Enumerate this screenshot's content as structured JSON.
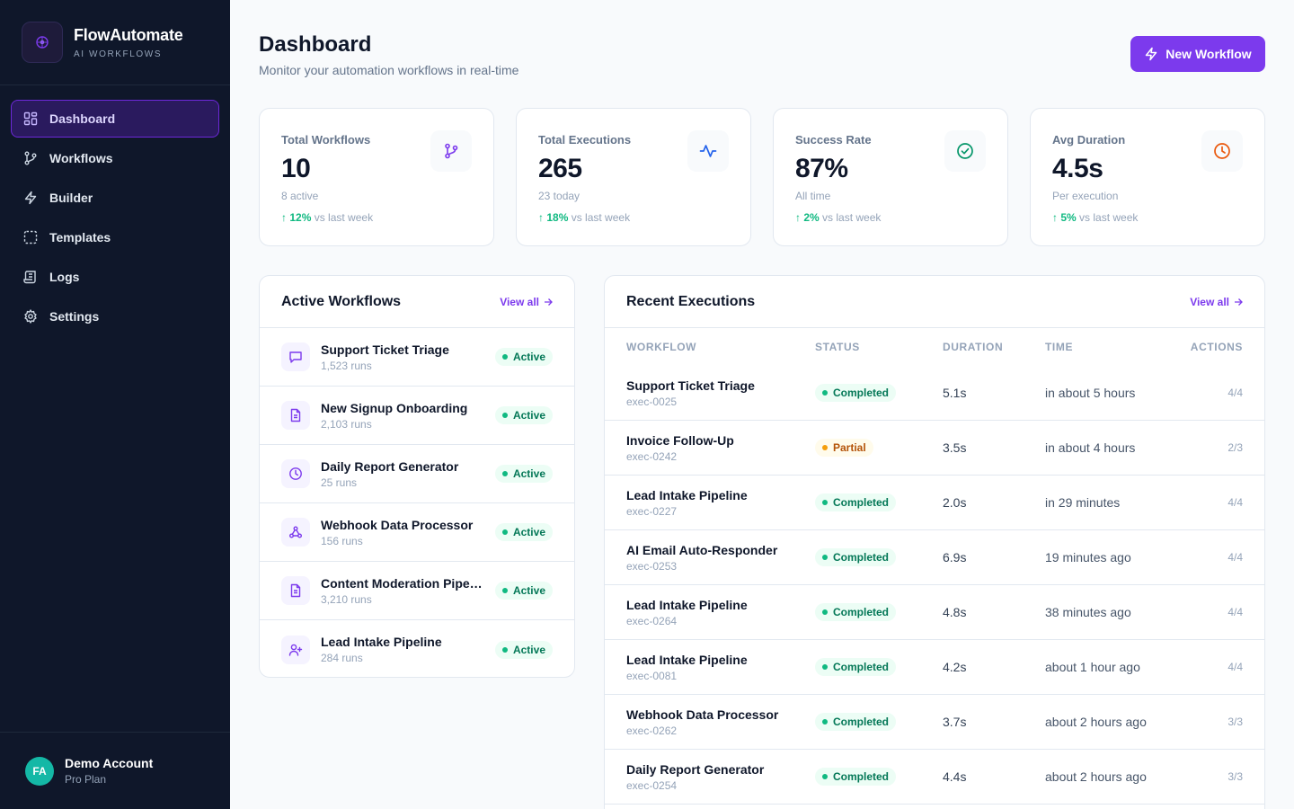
{
  "brand": {
    "name": "FlowAutomate",
    "subtitle": "AI WORKFLOWS"
  },
  "nav": [
    {
      "label": "Dashboard",
      "icon": "layout-grid-icon",
      "active": true
    },
    {
      "label": "Workflows",
      "icon": "git-branch-icon"
    },
    {
      "label": "Builder",
      "icon": "zap-icon"
    },
    {
      "label": "Templates",
      "icon": "dashed-square-icon"
    },
    {
      "label": "Logs",
      "icon": "scroll-icon"
    },
    {
      "label": "Settings",
      "icon": "gear-icon"
    }
  ],
  "account": {
    "initials": "FA",
    "name": "Demo Account",
    "plan": "Pro Plan"
  },
  "header": {
    "title": "Dashboard",
    "subtitle": "Monitor your automation workflows in real-time",
    "new_button": "New Workflow"
  },
  "stats": [
    {
      "label": "Total Workflows",
      "value": "10",
      "sub": "8 active",
      "trend": "12%",
      "trend_text": "vs last week",
      "icon": "git-branch-icon",
      "color": "#7c3aed"
    },
    {
      "label": "Total Executions",
      "value": "265",
      "sub": "23 today",
      "trend": "18%",
      "trend_text": "vs last week",
      "icon": "activity-icon",
      "color": "#2563eb"
    },
    {
      "label": "Success Rate",
      "value": "87%",
      "sub": "All time",
      "trend": "2%",
      "trend_text": "vs last week",
      "icon": "check-circle-icon",
      "color": "#059669"
    },
    {
      "label": "Avg Duration",
      "value": "4.5s",
      "sub": "Per execution",
      "trend": "5%",
      "trend_text": "vs last week",
      "icon": "clock-icon",
      "color": "#ea580c"
    }
  ],
  "active_workflows": {
    "title": "Active Workflows",
    "view_all": "View all",
    "items": [
      {
        "name": "Support Ticket Triage",
        "runs": "1,523 runs",
        "status": "Active",
        "icon": "message-square-icon"
      },
      {
        "name": "New Signup Onboarding",
        "runs": "2,103 runs",
        "status": "Active",
        "icon": "file-text-icon"
      },
      {
        "name": "Daily Report Generator",
        "runs": "25 runs",
        "status": "Active",
        "icon": "clock-icon"
      },
      {
        "name": "Webhook Data Processor",
        "runs": "156 runs",
        "status": "Active",
        "icon": "webhook-icon"
      },
      {
        "name": "Content Moderation Pipeli...",
        "runs": "3,210 runs",
        "status": "Active",
        "icon": "file-text-icon"
      },
      {
        "name": "Lead Intake Pipeline",
        "runs": "284 runs",
        "status": "Active",
        "icon": "user-plus-icon"
      }
    ]
  },
  "recent_executions": {
    "title": "Recent Executions",
    "view_all": "View all",
    "columns": [
      "WORKFLOW",
      "STATUS",
      "DURATION",
      "TIME",
      "ACTIONS"
    ],
    "rows": [
      {
        "workflow": "Support Ticket Triage",
        "id": "exec-0025",
        "status": "Completed",
        "duration": "5.1s",
        "time": "in about 5 hours",
        "actions": "4/4"
      },
      {
        "workflow": "Invoice Follow-Up",
        "id": "exec-0242",
        "status": "Partial",
        "duration": "3.5s",
        "time": "in about 4 hours",
        "actions": "2/3"
      },
      {
        "workflow": "Lead Intake Pipeline",
        "id": "exec-0227",
        "status": "Completed",
        "duration": "2.0s",
        "time": "in 29 minutes",
        "actions": "4/4"
      },
      {
        "workflow": "AI Email Auto-Responder",
        "id": "exec-0253",
        "status": "Completed",
        "duration": "6.9s",
        "time": "19 minutes ago",
        "actions": "4/4"
      },
      {
        "workflow": "Lead Intake Pipeline",
        "id": "exec-0264",
        "status": "Completed",
        "duration": "4.8s",
        "time": "38 minutes ago",
        "actions": "4/4"
      },
      {
        "workflow": "Lead Intake Pipeline",
        "id": "exec-0081",
        "status": "Completed",
        "duration": "4.2s",
        "time": "about 1 hour ago",
        "actions": "4/4"
      },
      {
        "workflow": "Webhook Data Processor",
        "id": "exec-0262",
        "status": "Completed",
        "duration": "3.7s",
        "time": "about 2 hours ago",
        "actions": "3/3"
      },
      {
        "workflow": "Daily Report Generator",
        "id": "exec-0254",
        "status": "Completed",
        "duration": "4.4s",
        "time": "about 2 hours ago",
        "actions": "3/3"
      }
    ]
  }
}
